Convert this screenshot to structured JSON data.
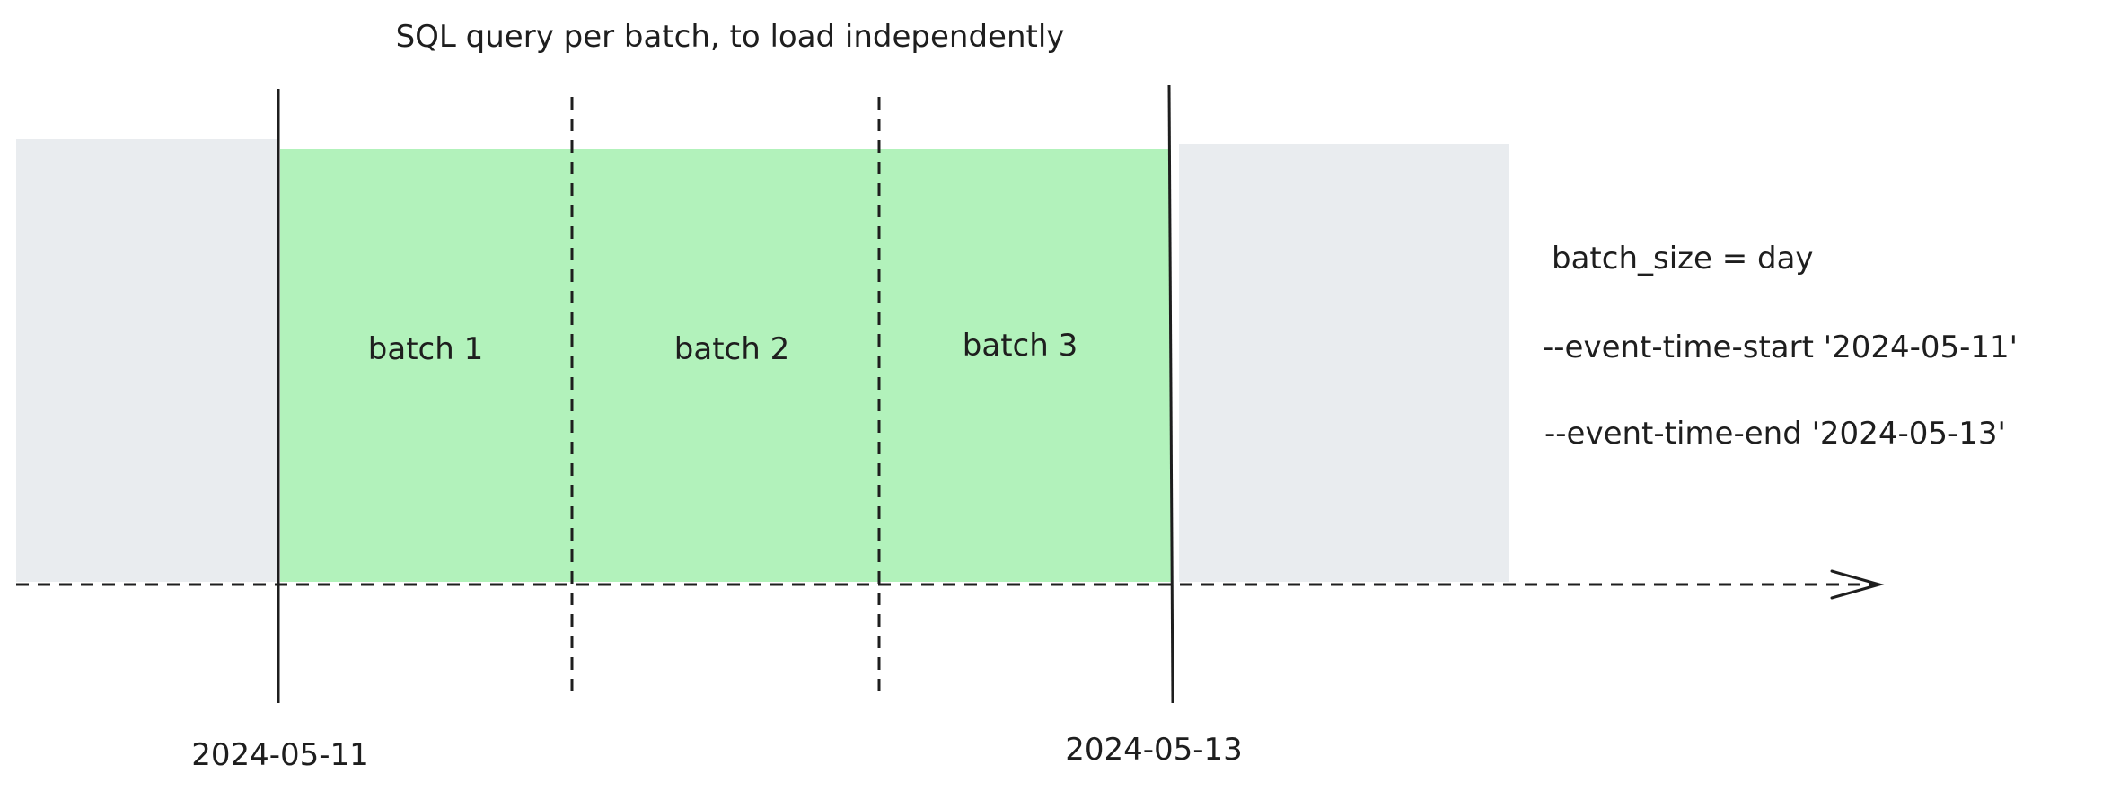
{
  "title": "SQL query per batch, to load independently",
  "batches": [
    {
      "label": "batch 1"
    },
    {
      "label": "batch 2"
    },
    {
      "label": "batch 3"
    }
  ],
  "dates": {
    "start": "2024-05-11",
    "end": "2024-05-13"
  },
  "config": {
    "batch_size": "batch_size = day",
    "start_flag": "--event-time-start '2024-05-11'",
    "end_flag": "--event-time-end '2024-05-13'"
  },
  "colors": {
    "selected_range": "#b2f2bb",
    "outside_range": "#e9ecef",
    "stroke": "#1e1e1e"
  }
}
